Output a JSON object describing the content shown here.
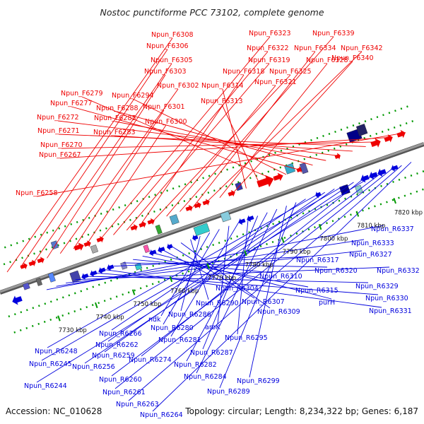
{
  "header": {
    "title": "Nostoc punctiforme PCC 73102, complete genome"
  },
  "footer": {
    "accession": "Accession: NC_010628",
    "summary": "Topology: circular; Length: 8,234,322 bp; Genes: 6,187"
  },
  "colors": {
    "forward": "#ee0000",
    "reverse": "#0000dd",
    "backbone": "#999999",
    "ticks": "#009900"
  },
  "kbp_ticks": [
    "7730 kbp",
    "7740 kbp",
    "7750 kbp",
    "7760 kbp",
    "7770 kbp",
    "7780 kbp",
    "7790 kbp",
    "7800 kbp",
    "7810 kbp",
    "7820 kbp",
    "7830 kbp"
  ],
  "forward_labels": [
    "Npun_F6308",
    "Npun_F6306",
    "Npun_F6305",
    "Npun_F6303",
    "Npun_F6302",
    "Npun_F6301",
    "Npun_F6300",
    "Npun_F6323",
    "Npun_F6322",
    "Npun_F6319",
    "Npun_F6318",
    "Npun_F6325",
    "Npun_F6321",
    "Npun_F6339",
    "Npun_F6334",
    "Npun_F6342",
    "Npun_F6328",
    "Npun_F6340",
    "Npun_F6314",
    "Npun_F6313",
    "Npun_F6279",
    "Npun_F6294",
    "Npun_F6277",
    "Npun_F6288",
    "Npun_F6285",
    "Npun_F6272",
    "Npun_F6283",
    "Npun_F6271",
    "Npun_F6270",
    "Npun_F6267",
    "Npun_F6258"
  ],
  "reverse_labels": [
    "Npun_R6337",
    "Npun_R6333",
    "Npun_R6327",
    "Npun_R6332",
    "Npun_R6329",
    "Npun_R6330",
    "Npun_R6331",
    "Npun_R6317",
    "Npun_R6320",
    "Npun_R6310",
    "Npun_R6315",
    "purH",
    "Npun_R6304",
    "Npun_R6307",
    "Npun_R6309",
    "Npun_R6290",
    "Npun_R6286",
    "ndk",
    "Npun_R6280",
    "aroK",
    "Npun_R6281",
    "Npun_R6295",
    "Npun_R6287",
    "Npun_R6282",
    "Npun_R6284",
    "Npun_R6299",
    "Npun_R6289",
    "Npun_R6266",
    "Npun_R6248",
    "Npun_R6262",
    "Npun_R6259",
    "Npun_R6245",
    "Npun_R6256",
    "Npun_R6274",
    "Npun_R6244",
    "Npun_R6260",
    "Npun_R6261",
    "Npun_R6263",
    "Npun_R6264"
  ]
}
